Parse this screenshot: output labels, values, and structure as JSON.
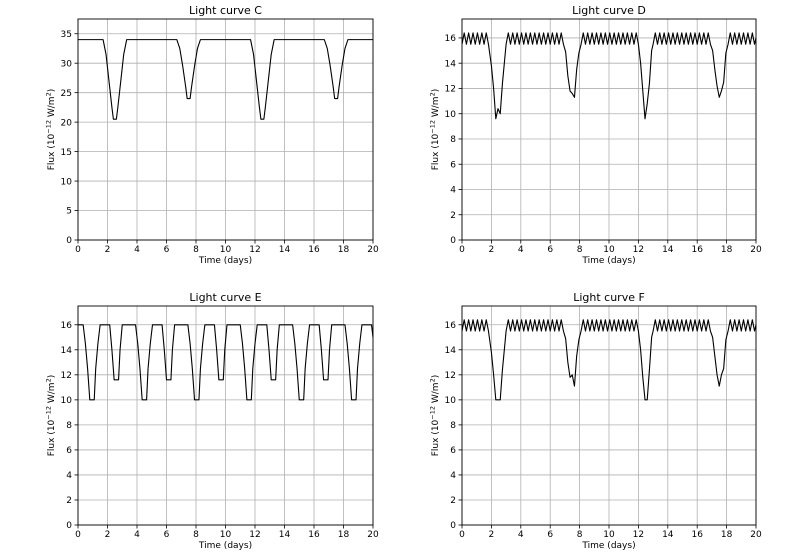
{
  "chart_data": [
    {
      "type": "line",
      "title": "Light curve C",
      "xlabel": "Time (days)",
      "ylabel_main": "Flux (10",
      "ylabel_exp": "−12",
      "ylabel_unit": " W/m",
      "ylabel_unit_exp": "2",
      "ylabel_close": ")",
      "xlim": [
        0,
        20
      ],
      "ylim": [
        0,
        37.5
      ],
      "xticks": [
        0,
        2,
        4,
        6,
        8,
        10,
        12,
        14,
        16,
        18,
        20
      ],
      "yticks": [
        0,
        5,
        10,
        15,
        20,
        25,
        30,
        35
      ],
      "grid": true,
      "series": [
        {
          "x": [
            0,
            1.7,
            1.9,
            2.1,
            2.3,
            2.4,
            2.6,
            2.7,
            2.9,
            3.1,
            3.3,
            6.7,
            6.9,
            7.1,
            7.3,
            7.4,
            7.6,
            7.7,
            7.9,
            8.1,
            8.3,
            11.7,
            11.9,
            12.1,
            12.3,
            12.4,
            12.6,
            12.7,
            12.9,
            13.1,
            13.3,
            16.7,
            16.9,
            17.1,
            17.3,
            17.4,
            17.6,
            17.7,
            17.9,
            18.1,
            18.3,
            20
          ],
          "y": [
            34,
            34,
            31.5,
            27,
            22.5,
            20.5,
            20.5,
            22.5,
            27,
            31.5,
            34,
            34,
            32.5,
            29.5,
            26,
            24,
            24,
            26,
            29.5,
            32.5,
            34,
            34,
            31.5,
            27,
            22.5,
            20.5,
            20.5,
            22.5,
            27,
            31.5,
            34,
            34,
            32.5,
            29.5,
            26,
            24,
            24,
            26,
            29.5,
            32.5,
            34,
            34
          ]
        }
      ]
    },
    {
      "type": "line",
      "title": "Light curve D",
      "xlabel": "Time (days)",
      "ylabel_main": "Flux (10",
      "ylabel_exp": "−12",
      "ylabel_unit": " W/m",
      "ylabel_unit_exp": "2",
      "ylabel_close": ")",
      "xlim": [
        0,
        20
      ],
      "ylim": [
        0,
        17.5
      ],
      "xticks": [
        0,
        2,
        4,
        6,
        8,
        10,
        12,
        14,
        16,
        18,
        20
      ],
      "yticks": [
        0,
        2,
        4,
        6,
        8,
        10,
        12,
        14,
        16
      ],
      "grid": true,
      "series": [
        {
          "x": [
            0,
            0.15,
            0.3,
            0.45,
            0.6,
            0.75,
            0.9,
            1.05,
            1.2,
            1.35,
            1.5,
            1.65,
            1.8,
            2.0,
            2.15,
            2.3,
            2.45,
            2.6,
            2.75,
            3.0,
            3.15,
            3.3,
            3.45,
            3.6,
            3.75,
            3.9,
            4.05,
            4.2,
            4.35,
            4.5,
            4.65,
            4.8,
            4.95,
            5.1,
            5.25,
            5.4,
            5.55,
            5.7,
            5.85,
            6.0,
            6.15,
            6.3,
            6.45,
            6.6,
            6.75,
            6.9,
            7.05,
            7.2,
            7.35,
            7.5,
            7.65,
            7.8,
            7.95,
            8.1,
            8.25,
            8.4,
            8.55,
            8.7,
            8.85,
            9.0,
            9.15,
            9.3,
            9.45,
            9.6,
            9.75,
            9.9,
            10.05,
            10.2,
            10.35,
            10.5,
            10.65,
            10.8,
            10.95,
            11.1,
            11.25,
            11.4,
            11.55,
            11.7,
            11.85,
            12.0,
            12.15,
            12.3,
            12.45,
            12.6,
            12.75,
            12.9,
            13.0,
            13.15,
            13.3,
            13.45,
            13.6,
            13.75,
            13.9,
            14.05,
            14.2,
            14.35,
            14.5,
            14.65,
            14.8,
            14.95,
            15.1,
            15.25,
            15.4,
            15.55,
            15.7,
            15.85,
            16.0,
            16.15,
            16.3,
            16.45,
            16.6,
            16.75,
            16.9,
            17.05,
            17.2,
            17.35,
            17.5,
            17.65,
            17.8,
            17.95,
            18.1,
            18.25,
            18.4,
            18.55,
            18.7,
            18.85,
            19.0,
            19.15,
            19.3,
            19.45,
            19.6,
            19.75,
            19.9,
            20
          ],
          "y": [
            15.5,
            16.4,
            15.5,
            16.4,
            15.5,
            16.4,
            15.5,
            16.4,
            15.5,
            16.4,
            15.5,
            16.4,
            15.5,
            13.8,
            12.0,
            9.6,
            10.4,
            10.0,
            12.4,
            15.5,
            16.4,
            15.5,
            16.4,
            15.5,
            16.4,
            15.5,
            16.4,
            15.5,
            16.4,
            15.5,
            16.4,
            15.5,
            16.4,
            15.5,
            16.4,
            15.5,
            16.4,
            15.5,
            16.4,
            15.5,
            16.4,
            15.5,
            16.4,
            15.5,
            16.4,
            15.5,
            14.9,
            13.0,
            11.8,
            11.6,
            11.3,
            13.5,
            14.8,
            15.5,
            16.4,
            15.5,
            16.4,
            15.5,
            16.4,
            15.5,
            16.4,
            15.5,
            16.4,
            15.5,
            16.4,
            15.5,
            16.4,
            15.5,
            16.4,
            15.5,
            16.4,
            15.5,
            16.4,
            15.5,
            16.4,
            15.5,
            16.4,
            15.5,
            16.4,
            15.5,
            14.0,
            11.8,
            9.6,
            10.8,
            12.4,
            15.0,
            15.5,
            16.4,
            15.5,
            16.4,
            15.5,
            16.4,
            15.5,
            16.4,
            15.5,
            16.4,
            15.5,
            16.4,
            15.5,
            16.4,
            15.5,
            16.4,
            15.5,
            16.4,
            15.5,
            16.4,
            15.5,
            16.4,
            15.5,
            16.4,
            15.5,
            16.4,
            15.5,
            15.0,
            13.5,
            12.2,
            11.3,
            11.8,
            12.5,
            14.8,
            15.5,
            16.4,
            15.5,
            16.4,
            15.5,
            16.4,
            15.5,
            16.4,
            15.5,
            16.4,
            15.5,
            16.4,
            15.5,
            16.0
          ]
        }
      ]
    },
    {
      "type": "line",
      "title": "Light curve E",
      "xlabel": "Time (days)",
      "ylabel_main": "Flux (10",
      "ylabel_exp": "−12",
      "ylabel_unit": " W/m",
      "ylabel_unit_exp": "2",
      "ylabel_close": ")",
      "xlim": [
        0,
        20
      ],
      "ylim": [
        0,
        17.5
      ],
      "xticks": [
        0,
        2,
        4,
        6,
        8,
        10,
        12,
        14,
        16,
        18,
        20
      ],
      "yticks": [
        0,
        2,
        4,
        6,
        8,
        10,
        12,
        14,
        16
      ],
      "grid": true,
      "series": [
        {
          "x": [
            0,
            0.35,
            0.5,
            0.65,
            0.8,
            0.9,
            1.1,
            1.2,
            1.35,
            1.5,
            1.65,
            2.15,
            2.3,
            2.45,
            2.55,
            2.75,
            2.85,
            3.0,
            3.15,
            3.9,
            4.05,
            4.2,
            4.35,
            4.45,
            4.65,
            4.75,
            4.9,
            5.05,
            5.2,
            5.7,
            5.85,
            6.0,
            6.1,
            6.3,
            6.4,
            6.55,
            6.7,
            7.45,
            7.6,
            7.75,
            7.9,
            8.0,
            8.2,
            8.3,
            8.45,
            8.6,
            8.75,
            9.25,
            9.4,
            9.55,
            9.65,
            9.85,
            9.95,
            10.1,
            10.25,
            11.0,
            11.15,
            11.3,
            11.45,
            11.55,
            11.75,
            11.85,
            12.0,
            12.15,
            12.3,
            12.8,
            12.95,
            13.1,
            13.2,
            13.4,
            13.5,
            13.65,
            13.8,
            14.55,
            14.7,
            14.85,
            15.0,
            15.1,
            15.3,
            15.4,
            15.55,
            15.7,
            15.85,
            16.35,
            16.5,
            16.65,
            16.75,
            16.95,
            17.05,
            17.2,
            17.35,
            18.1,
            18.25,
            18.4,
            18.55,
            18.65,
            18.85,
            18.95,
            19.1,
            19.25,
            19.4,
            19.9,
            20
          ],
          "y": [
            16,
            16,
            14.5,
            12.5,
            10,
            10,
            10,
            12.5,
            14.5,
            16,
            16,
            16,
            14,
            11.6,
            11.6,
            11.6,
            14,
            16,
            16,
            16,
            14.5,
            12.5,
            10,
            10,
            10,
            12.5,
            14.5,
            16,
            16,
            16,
            14,
            11.6,
            11.6,
            11.6,
            14,
            16,
            16,
            16,
            14.5,
            12.5,
            10,
            10,
            10,
            12.5,
            14.5,
            16,
            16,
            16,
            14,
            11.6,
            11.6,
            11.6,
            14,
            16,
            16,
            16,
            14.5,
            12.5,
            10,
            10,
            10,
            12.5,
            14.5,
            16,
            16,
            16,
            14,
            11.6,
            11.6,
            11.6,
            14,
            16,
            16,
            16,
            14.5,
            12.5,
            10,
            10,
            10,
            12.5,
            14.5,
            16,
            16,
            16,
            14,
            11.6,
            11.6,
            11.6,
            14,
            16,
            16,
            16,
            14.5,
            12.5,
            10,
            10,
            10,
            12.5,
            14.5,
            16,
            16,
            16,
            15
          ]
        }
      ]
    },
    {
      "type": "line",
      "title": "Light curve F",
      "xlabel": "Time (days)",
      "ylabel_main": "Flux (10",
      "ylabel_exp": "−12",
      "ylabel_unit": " W/m",
      "ylabel_unit_exp": "2",
      "ylabel_close": ")",
      "xlim": [
        0,
        20
      ],
      "ylim": [
        0,
        17.5
      ],
      "xticks": [
        0,
        2,
        4,
        6,
        8,
        10,
        12,
        14,
        16,
        18,
        20
      ],
      "yticks": [
        0,
        2,
        4,
        6,
        8,
        10,
        12,
        14,
        16
      ],
      "grid": true,
      "series": [
        {
          "x": [
            0,
            0.15,
            0.3,
            0.45,
            0.6,
            0.75,
            0.9,
            1.05,
            1.2,
            1.35,
            1.5,
            1.65,
            1.8,
            2.0,
            2.15,
            2.3,
            2.45,
            2.6,
            2.75,
            3.0,
            3.15,
            3.3,
            3.45,
            3.6,
            3.75,
            3.9,
            4.05,
            4.2,
            4.35,
            4.5,
            4.65,
            4.8,
            4.95,
            5.1,
            5.25,
            5.4,
            5.55,
            5.7,
            5.85,
            6.0,
            6.15,
            6.3,
            6.45,
            6.6,
            6.75,
            6.9,
            7.05,
            7.2,
            7.35,
            7.5,
            7.65,
            7.8,
            7.95,
            8.1,
            8.25,
            8.4,
            8.55,
            8.7,
            8.85,
            9.0,
            9.15,
            9.3,
            9.45,
            9.6,
            9.75,
            9.9,
            10.05,
            10.2,
            10.35,
            10.5,
            10.65,
            10.8,
            10.95,
            11.1,
            11.25,
            11.4,
            11.55,
            11.7,
            11.85,
            12.0,
            12.15,
            12.3,
            12.45,
            12.6,
            12.75,
            12.9,
            13.0,
            13.15,
            13.3,
            13.45,
            13.6,
            13.75,
            13.9,
            14.05,
            14.2,
            14.35,
            14.5,
            14.65,
            14.8,
            14.95,
            15.1,
            15.25,
            15.4,
            15.55,
            15.7,
            15.85,
            16.0,
            16.15,
            16.3,
            16.45,
            16.6,
            16.75,
            16.9,
            17.05,
            17.2,
            17.35,
            17.5,
            17.65,
            17.8,
            17.95,
            18.1,
            18.25,
            18.4,
            18.55,
            18.7,
            18.85,
            19.0,
            19.15,
            19.3,
            19.45,
            19.6,
            19.75,
            19.9,
            20
          ],
          "y": [
            15.5,
            16.4,
            15.5,
            16.4,
            15.5,
            16.4,
            15.5,
            16.4,
            15.5,
            16.4,
            15.5,
            16.4,
            15.5,
            13.8,
            12.0,
            10.0,
            10.0,
            10.0,
            12.4,
            15.5,
            16.4,
            15.5,
            16.4,
            15.5,
            16.4,
            15.5,
            16.4,
            15.5,
            16.4,
            15.5,
            16.4,
            15.5,
            16.4,
            15.5,
            16.4,
            15.5,
            16.4,
            15.5,
            16.4,
            15.5,
            16.4,
            15.5,
            16.4,
            15.5,
            16.4,
            15.5,
            14.9,
            13.0,
            11.8,
            12.0,
            11.1,
            13.5,
            14.8,
            15.5,
            16.4,
            15.5,
            16.4,
            15.5,
            16.4,
            15.5,
            16.4,
            15.5,
            16.4,
            15.5,
            16.4,
            15.5,
            16.4,
            15.5,
            16.4,
            15.5,
            16.4,
            15.5,
            16.4,
            15.5,
            16.4,
            15.5,
            16.4,
            15.5,
            16.4,
            15.5,
            14.0,
            11.8,
            10.0,
            10.0,
            12.4,
            15.0,
            15.5,
            16.4,
            15.5,
            16.4,
            15.5,
            16.4,
            15.5,
            16.4,
            15.5,
            16.4,
            15.5,
            16.4,
            15.5,
            16.4,
            15.5,
            16.4,
            15.5,
            16.4,
            15.5,
            16.4,
            15.5,
            16.4,
            15.5,
            16.4,
            15.5,
            16.4,
            15.5,
            15.0,
            13.5,
            12.0,
            11.1,
            12.0,
            12.5,
            14.8,
            15.5,
            16.4,
            15.5,
            16.4,
            15.5,
            16.4,
            15.5,
            16.4,
            15.5,
            16.4,
            15.5,
            16.4,
            15.5,
            16.0
          ]
        }
      ]
    }
  ]
}
